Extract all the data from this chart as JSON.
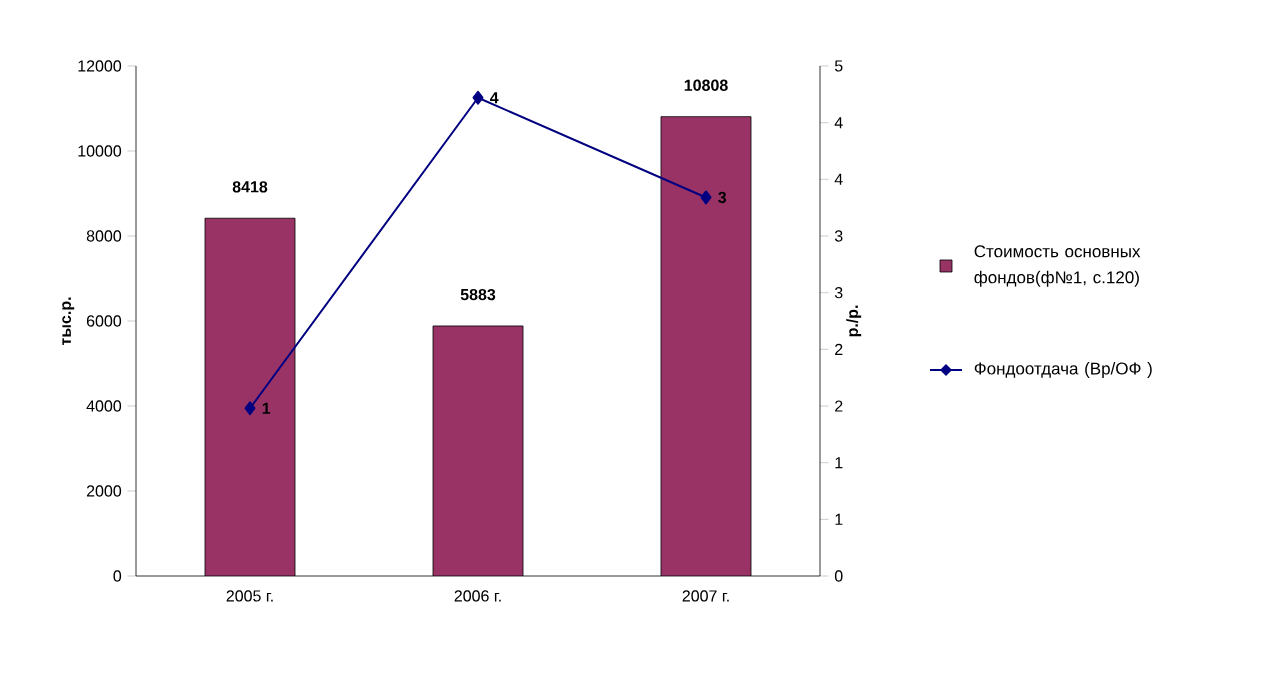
{
  "chart_data": {
    "type": "bar",
    "categories": [
      "2005 г.",
      "2006 г.",
      "2007 г."
    ],
    "ylabel": "тыс.р.",
    "y2label": "р./р.",
    "ylim": [
      0,
      12000
    ],
    "yticks": [
      0,
      2000,
      4000,
      6000,
      8000,
      10000,
      12000
    ],
    "y2lim": [
      0,
      4.5
    ],
    "y2ticks": [
      {
        "value": 0,
        "label": "0"
      },
      {
        "value": 0.5,
        "label": "1"
      },
      {
        "value": 1,
        "label": "1"
      },
      {
        "value": 1.5,
        "label": "2"
      },
      {
        "value": 2,
        "label": "2"
      },
      {
        "value": 2.5,
        "label": "3"
      },
      {
        "value": 3,
        "label": "3"
      },
      {
        "value": 3.5,
        "label": "4"
      },
      {
        "value": 4,
        "label": "4"
      },
      {
        "value": 4.5,
        "label": "5"
      }
    ],
    "legend": "right",
    "marker": "diamond",
    "grid": false,
    "series": [
      {
        "name": "Стоимость основных фондов(ф№1, с.120)",
        "color": "#993366",
        "values": [
          8418,
          5883,
          10808
        ],
        "value_labels": [
          "8418",
          "5883",
          "10808"
        ]
      },
      {
        "name": "Фондоотдача (Вр/ОФ )",
        "type": "line",
        "axis": "y2",
        "color": "#000080",
        "values": [
          1.48,
          4.22,
          3.34
        ],
        "value_labels": [
          "1",
          "4",
          "3"
        ]
      }
    ]
  }
}
